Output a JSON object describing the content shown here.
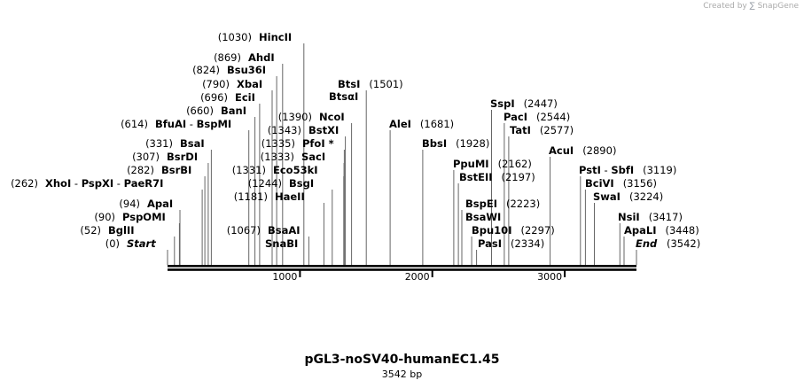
{
  "credit": {
    "prefix": "Created by",
    "brand": "SnapGene"
  },
  "map": {
    "name": "pGL3-noSV40-humanEC1.45",
    "length_label": "3542 bp",
    "total_bp": 3542,
    "ticks": [
      1000,
      2000,
      3000
    ],
    "sites": [
      {
        "pos": 0,
        "pos_label": "(0)",
        "names": [
          "Start"
        ],
        "italic": true
      },
      {
        "pos": 52,
        "pos_label": "(52)",
        "names": [
          "BglII"
        ]
      },
      {
        "pos": 90,
        "pos_label": "(90)",
        "names": [
          "PspOMI"
        ]
      },
      {
        "pos": 94,
        "pos_label": "(94)",
        "names": [
          "ApaI"
        ]
      },
      {
        "pos": 262,
        "pos_label": "(262)",
        "names": [
          "XhoI",
          "PspXI",
          "PaeR7I"
        ]
      },
      {
        "pos": 282,
        "pos_label": "(282)",
        "names": [
          "BsrBI"
        ]
      },
      {
        "pos": 307,
        "pos_label": "(307)",
        "names": [
          "BsrDI"
        ]
      },
      {
        "pos": 331,
        "pos_label": "(331)",
        "names": [
          "BsaI"
        ]
      },
      {
        "pos": 614,
        "pos_label": "(614)",
        "names": [
          "BfuAI",
          "BspMI"
        ]
      },
      {
        "pos": 660,
        "pos_label": "(660)",
        "names": [
          "BanI"
        ]
      },
      {
        "pos": 696,
        "pos_label": "(696)",
        "names": [
          "EciI"
        ]
      },
      {
        "pos": 790,
        "pos_label": "(790)",
        "names": [
          "XbaI"
        ]
      },
      {
        "pos": 824,
        "pos_label": "(824)",
        "names": [
          "Bsu36I"
        ]
      },
      {
        "pos": 869,
        "pos_label": "(869)",
        "names": [
          "AhdI"
        ]
      },
      {
        "pos": 1030,
        "pos_label": "(1030)",
        "names": [
          "HincII"
        ]
      },
      {
        "pos": 1067,
        "pos_label": "(1067)",
        "names": [
          "BsaAI",
          "SnaBI"
        ],
        "stacked": true
      },
      {
        "pos": 1181,
        "pos_label": "(1181)",
        "names": [
          "HaeII"
        ]
      },
      {
        "pos": 1244,
        "pos_label": "(1244)",
        "names": [
          "BsgI"
        ]
      },
      {
        "pos": 1331,
        "pos_label": "(1331)",
        "names": [
          "Eco53kI"
        ]
      },
      {
        "pos": 1333,
        "pos_label": "(1333)",
        "names": [
          "SacI"
        ]
      },
      {
        "pos": 1335,
        "pos_label": "(1335)",
        "names": [
          "PfoI *"
        ]
      },
      {
        "pos": 1343,
        "pos_label": "(1343)",
        "names": [
          "BstXI"
        ]
      },
      {
        "pos": 1390,
        "pos_label": "(1390)",
        "names": [
          "NcoI"
        ]
      },
      {
        "pos": 1501,
        "pos_label": "(1501)",
        "names": [
          "BtsI",
          "BtsαI"
        ],
        "stacked": true
      },
      {
        "pos": 1681,
        "pos_label": "(1681)",
        "names": [
          "AleI"
        ]
      },
      {
        "pos": 1928,
        "pos_label": "(1928)",
        "names": [
          "BbsI"
        ]
      },
      {
        "pos": 2162,
        "pos_label": "(2162)",
        "names": [
          "PpuMI"
        ]
      },
      {
        "pos": 2197,
        "pos_label": "(2197)",
        "names": [
          "BstEII"
        ]
      },
      {
        "pos": 2223,
        "pos_label": "(2223)",
        "names": [
          "BspEI",
          "BsaWI"
        ],
        "stacked": true
      },
      {
        "pos": 2297,
        "pos_label": "(2297)",
        "names": [
          "Bpu10I"
        ]
      },
      {
        "pos": 2334,
        "pos_label": "(2334)",
        "names": [
          "PasI"
        ]
      },
      {
        "pos": 2447,
        "pos_label": "(2447)",
        "names": [
          "SspI"
        ]
      },
      {
        "pos": 2544,
        "pos_label": "(2544)",
        "names": [
          "PacI"
        ]
      },
      {
        "pos": 2577,
        "pos_label": "(2577)",
        "names": [
          "TatI"
        ]
      },
      {
        "pos": 2890,
        "pos_label": "(2890)",
        "names": [
          "AcuI"
        ]
      },
      {
        "pos": 3119,
        "pos_label": "(3119)",
        "names": [
          "PstI",
          "SbfI"
        ]
      },
      {
        "pos": 3156,
        "pos_label": "(3156)",
        "names": [
          "BciVI"
        ]
      },
      {
        "pos": 3224,
        "pos_label": "(3224)",
        "names": [
          "SwaI"
        ]
      },
      {
        "pos": 3417,
        "pos_label": "(3417)",
        "names": [
          "NsiI"
        ]
      },
      {
        "pos": 3448,
        "pos_label": "(3448)",
        "names": [
          "ApaLI"
        ]
      },
      {
        "pos": 3542,
        "pos_label": "(3542)",
        "names": [
          "End"
        ],
        "italic": true
      }
    ]
  }
}
